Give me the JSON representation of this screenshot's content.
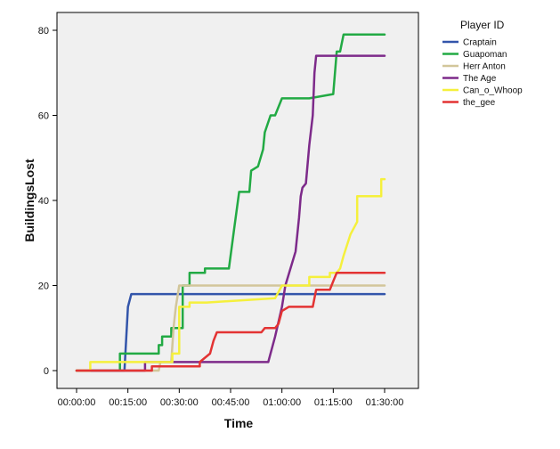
{
  "chart_data": {
    "type": "line",
    "title": "",
    "xlabel": "Time",
    "ylabel": "BuildingsLost",
    "xlim": [
      "00:00:00",
      "01:30:00"
    ],
    "ylim": [
      0,
      80
    ],
    "x_ticks": [
      "00:00:00",
      "00:15:00",
      "00:30:00",
      "00:45:00",
      "01:00:00",
      "01:15:00",
      "01:30:00"
    ],
    "y_ticks": [
      0,
      20,
      40,
      60,
      80
    ],
    "grid": false,
    "legend": {
      "title": "Player ID",
      "position": "right"
    },
    "series": [
      {
        "name": "Craptain",
        "color": "#3355aa",
        "x": [
          "00:00:00",
          "00:14:00",
          "00:14:20",
          "00:14:40",
          "00:15:00",
          "00:16:00",
          "01:30:00"
        ],
        "y": [
          0,
          0,
          5,
          10,
          15,
          18,
          18
        ]
      },
      {
        "name": "Guapoman",
        "color": "#22aa44",
        "x": [
          "00:00:00",
          "00:12:40",
          "00:12:40",
          "00:24:00",
          "00:24:00",
          "00:25:00",
          "00:25:00",
          "00:27:40",
          "00:27:40",
          "00:31:00",
          "00:31:00",
          "00:33:00",
          "00:33:00",
          "00:37:30",
          "00:37:30",
          "00:44:30",
          "00:46:00",
          "00:47:30",
          "00:50:30",
          "00:51:00",
          "00:53:00",
          "00:54:30",
          "00:55:00",
          "00:56:40",
          "00:58:00",
          "01:00:00",
          "01:08:00",
          "01:08:00",
          "01:15:00",
          "01:16:00",
          "01:17:00",
          "01:18:00",
          "01:30:00"
        ],
        "y": [
          0,
          0,
          4,
          4,
          6,
          6,
          8,
          8,
          10,
          10,
          20,
          20,
          23,
          23,
          24,
          24,
          33,
          42,
          42,
          47,
          48,
          52,
          56,
          60,
          60,
          64,
          64,
          64,
          65,
          75,
          75,
          79,
          79
        ]
      },
      {
        "name": "Herr Anton",
        "color": "#d2c69a",
        "x": [
          "00:00:00",
          "00:24:00",
          "00:24:30",
          "00:27:40",
          "00:28:20",
          "00:29:00",
          "00:30:00",
          "01:30:00"
        ],
        "y": [
          0,
          0,
          2,
          2,
          10,
          15,
          20,
          20
        ]
      },
      {
        "name": "The Age",
        "color": "#7d2a8a",
        "x": [
          "00:00:00",
          "00:20:00",
          "00:20:00",
          "00:56:00",
          "00:58:00",
          "01:00:00",
          "01:01:00",
          "01:04:00",
          "01:05:00",
          "01:05:30",
          "01:06:00",
          "01:07:00",
          "01:08:00",
          "01:09:00",
          "01:09:30",
          "01:10:00",
          "01:30:00"
        ],
        "y": [
          0,
          0,
          2,
          2,
          8,
          15,
          20,
          28,
          36,
          41,
          43,
          44,
          53,
          60,
          70,
          74,
          74
        ]
      },
      {
        "name": "Can_o_Whoop",
        "color": "#f5f03c",
        "x": [
          "00:00:00",
          "00:04:00",
          "00:04:00",
          "00:28:00",
          "00:28:00",
          "00:30:00",
          "00:30:00",
          "00:33:00",
          "00:33:00",
          "00:38:00",
          "00:38:00",
          "00:58:00",
          "01:00:00",
          "01:02:00",
          "01:04:00",
          "01:05:00",
          "01:08:00",
          "01:08:00",
          "01:11:00",
          "01:11:00",
          "01:14:00",
          "01:14:00",
          "01:16:00",
          "01:17:00",
          "01:18:00",
          "01:20:00",
          "01:22:00",
          "01:22:00",
          "01:25:00",
          "01:25:00",
          "01:29:00",
          "01:29:00",
          "01:30:00"
        ],
        "y": [
          0,
          0,
          2,
          2,
          4,
          4,
          15,
          15,
          16,
          16,
          16,
          17,
          20,
          20,
          20,
          20,
          20,
          22,
          22,
          22,
          22,
          23,
          23,
          24,
          27,
          32,
          35,
          41,
          41,
          41,
          41,
          45,
          45
        ]
      },
      {
        "name": "the_gee",
        "color": "#e33333",
        "x": [
          "00:00:00",
          "00:22:00",
          "00:22:00",
          "00:36:00",
          "00:36:00",
          "00:39:00",
          "00:40:00",
          "00:41:00",
          "00:54:00",
          "00:55:00",
          "00:58:00",
          "00:59:00",
          "01:00:00",
          "01:02:00",
          "01:09:00",
          "01:10:00",
          "01:14:00",
          "01:15:00",
          "01:16:00",
          "01:17:00",
          "01:30:00"
        ],
        "y": [
          0,
          0,
          1,
          1,
          2,
          4,
          7,
          9,
          9,
          10,
          10,
          11,
          14,
          15,
          15,
          19,
          19,
          21,
          23,
          23,
          23
        ]
      }
    ]
  }
}
